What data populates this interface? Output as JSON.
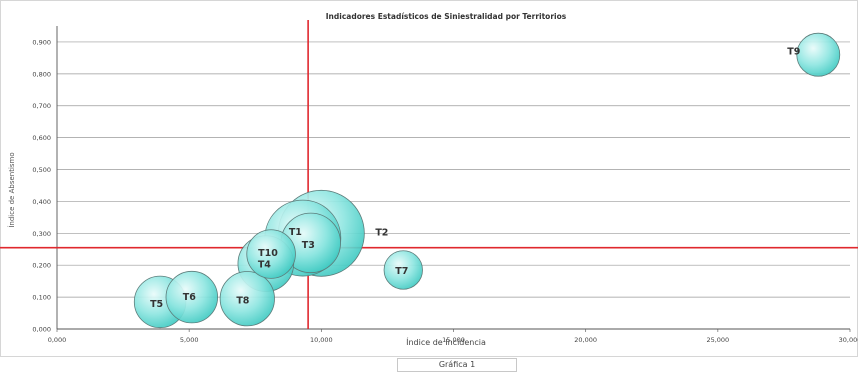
{
  "caption": "Gráfica 1",
  "chart_data": {
    "type": "scatter",
    "title": "Indicadores Estadísticos de Siniestralidad por Territorios",
    "xlabel": "Índice de Incidencia",
    "ylabel": "Índice de Absentismo",
    "xlim": [
      0,
      30
    ],
    "ylim": [
      0,
      0.95
    ],
    "x_ticks": [
      "0,000",
      "5,000",
      "10,000",
      "15,000",
      "20,000",
      "25,000",
      "30,000"
    ],
    "x_tick_values": [
      0,
      5,
      10,
      15,
      20,
      25,
      30
    ],
    "y_ticks": [
      "0,000",
      "0,100",
      "0,200",
      "0,300",
      "0,400",
      "0,500",
      "0,600",
      "0,700",
      "0,800",
      "0,900"
    ],
    "y_tick_values": [
      0,
      0.1,
      0.2,
      0.3,
      0.4,
      0.5,
      0.6,
      0.7,
      0.8,
      0.9
    ],
    "grid": true,
    "reference_lines": {
      "x": 9.5,
      "y": 0.255,
      "color": "#e0282e"
    },
    "bubble_color": "#57d9d2",
    "points": [
      {
        "label": "T1",
        "x": 9.3,
        "y": 0.285,
        "size": 0.78
      },
      {
        "label": "T2",
        "x": 10.0,
        "y": 0.3,
        "size": 1.0
      },
      {
        "label": "T3",
        "x": 9.6,
        "y": 0.27,
        "size": 0.48
      },
      {
        "label": "T4",
        "x": 7.9,
        "y": 0.205,
        "size": 0.42
      },
      {
        "label": "T5",
        "x": 3.9,
        "y": 0.085,
        "size": 0.36
      },
      {
        "label": "T6",
        "x": 5.1,
        "y": 0.1,
        "size": 0.36
      },
      {
        "label": "T7",
        "x": 13.1,
        "y": 0.185,
        "size": 0.2
      },
      {
        "label": "T8",
        "x": 7.2,
        "y": 0.095,
        "size": 0.4
      },
      {
        "label": "T9",
        "x": 28.8,
        "y": 0.86,
        "size": 0.25
      },
      {
        "label": "T10",
        "x": 8.1,
        "y": 0.235,
        "size": 0.32
      }
    ]
  }
}
